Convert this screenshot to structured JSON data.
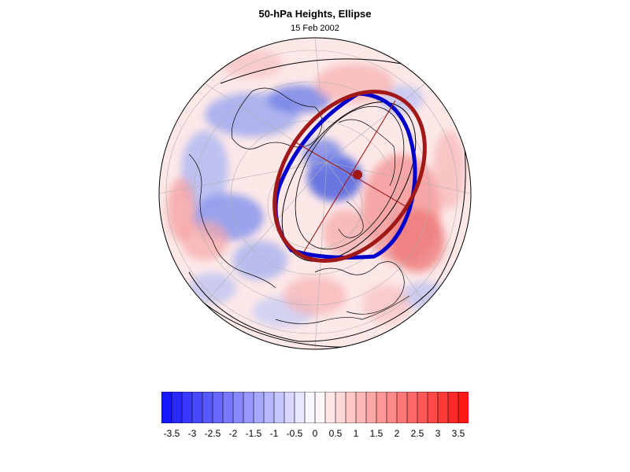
{
  "title": "50-hPa Heights, Ellipse",
  "subtitle": "15 Feb 2002",
  "colorbar": {
    "min": -3.75,
    "max": 3.75,
    "step": 0.25,
    "low_color": "#1010ff",
    "mid_color": "#ffffff",
    "high_color": "#ff1010",
    "tick_labels": [
      "-3.5",
      "-3",
      "-2.5",
      "-2",
      "-1.5",
      "-1",
      "-0.5",
      "0",
      "0.5",
      "1",
      "1.5",
      "2",
      "2.5",
      "3",
      "3.5"
    ],
    "tick_values": [
      -3.5,
      -3,
      -2.5,
      -2,
      -1.5,
      -1,
      -0.5,
      0,
      0.5,
      1,
      1.5,
      2,
      2.5,
      3,
      3.5
    ]
  },
  "map": {
    "projection": "orthographic-north-polar",
    "colors": {
      "observed_vortex_edge": "#0000cc",
      "fitted_ellipse": "#a01818",
      "ellipse_center": "#a01818",
      "contours": "#000000",
      "coastlines": "#000000",
      "graticule": "#b0b0b0"
    }
  }
}
